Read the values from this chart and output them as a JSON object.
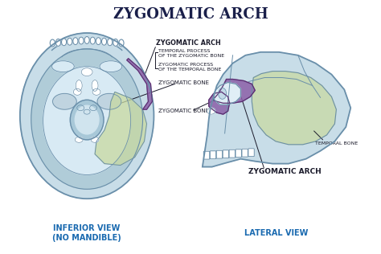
{
  "title": "ZYGOMATIC ARCH",
  "title_fontsize": 13,
  "title_color": "#1a1f4a",
  "bg_color": "#ffffff",
  "skull_outline_color": "#6a8faa",
  "skull_fill_light": "#c8dde8",
  "skull_fill_mid": "#b0ccd8",
  "skull_fill_dark": "#9abccc",
  "zygomatic_bone_color": "#8b5fa8",
  "temporal_bone_color": "#c8d9a0",
  "annotation_color": "#1a1a2a",
  "label_color_blue": "#1a6ab0",
  "inferior_view_label": "INFERIOR VIEW\n(NO MANDIBLE)",
  "lateral_view_label": "LATERAL VIEW",
  "labels": {
    "zygomatic_arch": "ZYGOMATIC ARCH",
    "temporal_process": "TEMPORAL PROCESS\nOF THE ZYGOMATIC BONE",
    "zygomatic_process": "ZYGOMATIC PROCESS\nOF THE TEMPORAL BONE",
    "zygomatic_bone": "ZYGOMATIC BONE",
    "temporal_bone": "TEMPORAL BONE",
    "zygomatic_arch_lateral": "ZYGOMATIC ARCH"
  }
}
